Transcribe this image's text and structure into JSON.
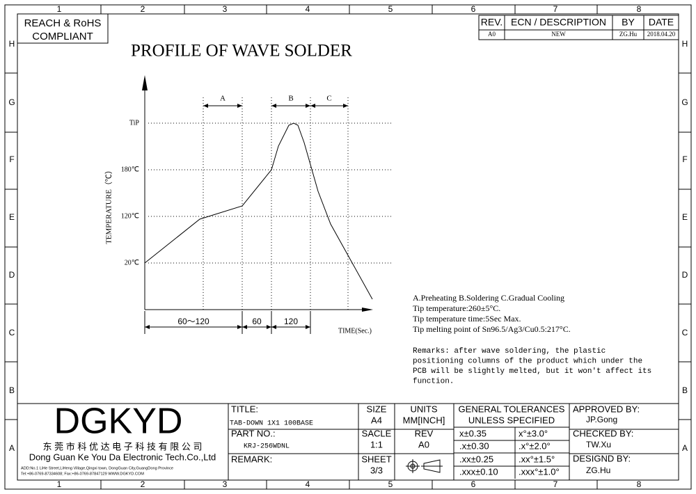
{
  "frame": {
    "columns": [
      "1",
      "2",
      "3",
      "4",
      "5",
      "6",
      "7",
      "8"
    ],
    "rows": [
      "H",
      "G",
      "F",
      "E",
      "D",
      "C",
      "B",
      "A"
    ]
  },
  "compliance": [
    "REACH & RoHS",
    "COMPLIANT"
  ],
  "revision_table": {
    "headers": [
      "REV.",
      "ECN / DESCRIPTION",
      "BY",
      "DATE"
    ],
    "rows": [
      [
        "A0",
        "NEW",
        "ZG.Hu",
        "2018.04.20"
      ]
    ]
  },
  "title": "PROFILE OF WAVE SOLDER",
  "diagram": {
    "y_axis_label": "TEMPERATURE（℃）",
    "x_axis_label": "TIME(Sec.)",
    "temperature_levels": [
      "TiP",
      "180℃",
      "120℃",
      "20℃"
    ],
    "zones": [
      "A",
      "B",
      "C"
    ],
    "durations": [
      "60～120",
      "60",
      "120"
    ]
  },
  "notes": [
    "A.Preheating  B.Soldering  C.Gradual Cooling",
    "Tip temperature:260±5°C.",
    "Tip temperature time:5Sec Max.",
    "Tip melting point of Sn96.5/Ag3/Cu0.5:217°C."
  ],
  "remarks": [
    "Remarks: after wave soldering, the plastic",
    "positioning columns of the product  which under the",
    "PCB will be slightly melted, but it won't affect its",
    "function."
  ],
  "title_block": {
    "company": {
      "logo": "DGKYD",
      "name_cn": "东 莞 市 科 优 达 电 子 科 技 有 限 公 司",
      "name_en": "Dong Guan Ke You Da Electronic Tech.Co.,Ltd",
      "address": "ADD:No.1 LiHe Street,LiHeng Village,Qingxi town, DongGuan City,GuangDong Province",
      "contact": "Tel:+86-0769-87334608; Fax:+86-0769-87847129  WWW.DGKYD.COM"
    },
    "title_label": "TITLE:",
    "title_value": "TAB-DOWN 1X1 100BASE",
    "part_label": "PART NO.:",
    "part_value": "KRJ-256WDNL",
    "remark_label": "REMARK:",
    "size_label": "SIZE",
    "size_value": "A4",
    "scale_label": "SACLE",
    "scale_value": "1:1",
    "sheet_label": "SHEET",
    "sheet_value": "3/3",
    "units_label": "UNITS",
    "units_value": "MM[INCH]",
    "rev_label": "REV",
    "rev_value": "A0",
    "tolerances_title": [
      "GENERAL TOLERANCES",
      "UNLESS SPECIFIED"
    ],
    "tolerances": [
      [
        "x±0.35",
        "x°±3.0°"
      ],
      [
        ".x±0.30",
        ".x°±2.0°"
      ],
      [
        ".xx±0.25",
        ".xx°±1.5°"
      ],
      [
        ".xxx±0.10",
        ".xxx°±1.0°"
      ]
    ],
    "approved_label": "APPROVED BY:",
    "approved_value": "JP.Gong",
    "checked_label": "CHECKED BY:",
    "checked_value": "TW.Xu",
    "designed_label": "DESIGND BY:",
    "designed_value": "ZG.Hu"
  }
}
